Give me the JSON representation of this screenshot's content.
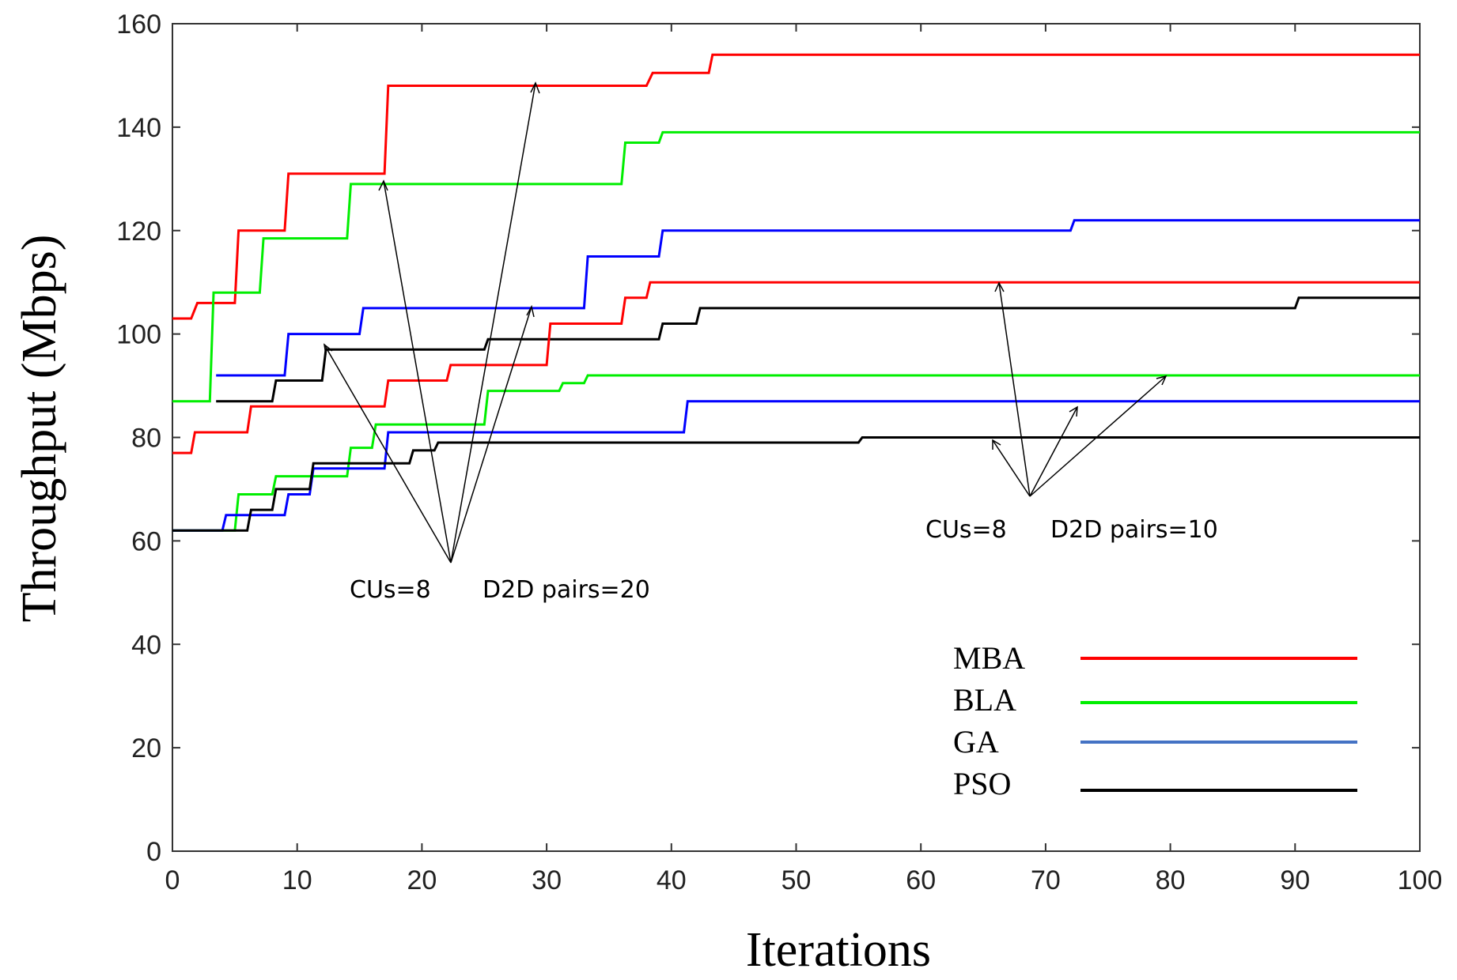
{
  "chart_data": {
    "type": "line",
    "title": "",
    "xlabel": "Iterations",
    "ylabel": "Throughput (Mbps)",
    "xlim": [
      0,
      100
    ],
    "ylim": [
      0,
      160
    ],
    "xticks": [
      "0",
      "10",
      "20",
      "30",
      "40",
      "50",
      "60",
      "70",
      "80",
      "90",
      "100"
    ],
    "yticks": [
      "0",
      "20",
      "40",
      "60",
      "80",
      "100",
      "120",
      "140",
      "160"
    ],
    "grid": false,
    "legend_position": "bottom-right",
    "legend": [
      {
        "name": "MBA",
        "color": "#ff0000"
      },
      {
        "name": "BLA",
        "color": "#00ee00"
      },
      {
        "name": "GA",
        "color": "#4472c4"
      },
      {
        "name": "PSO",
        "color": "#000000"
      }
    ],
    "annotations": [
      {
        "cus": "CUs=8",
        "pairs": "D2D pairs=20"
      },
      {
        "cus": "CUs=8",
        "pairs": "D2D pairs=10"
      }
    ],
    "series": [
      {
        "name": "MBA",
        "scenario": "D2D pairs=20",
        "color": "#ff0000",
        "x": [
          0,
          1.5,
          2,
          5,
          5.3,
          9,
          9.3,
          17,
          17.3,
          38,
          38.5,
          43,
          43.3,
          100
        ],
        "y": [
          103,
          103,
          106,
          106,
          120,
          120,
          131,
          131,
          148,
          148,
          150.5,
          150.5,
          154,
          154
        ]
      },
      {
        "name": "BLA",
        "scenario": "D2D pairs=20",
        "color": "#00ee00",
        "x": [
          0,
          3,
          3.3,
          7,
          7.3,
          14,
          14.3,
          36,
          36.3,
          39,
          39.3,
          100
        ],
        "y": [
          87,
          87,
          108,
          108,
          118.5,
          118.5,
          129,
          129,
          137,
          137,
          139,
          139
        ]
      },
      {
        "name": "GA",
        "scenario": "D2D pairs=20",
        "color": "#0000ff",
        "x": [
          3.5,
          9,
          9.3,
          15,
          15.3,
          33,
          33.3,
          39,
          39.3,
          72,
          72.3,
          100
        ],
        "y": [
          92,
          92,
          100,
          100,
          105,
          105,
          115,
          115,
          120,
          120,
          122,
          122
        ]
      },
      {
        "name": "PSO",
        "scenario": "D2D pairs=20",
        "color": "#000000",
        "x": [
          3.5,
          8,
          8.3,
          12,
          12.3,
          25,
          25.3,
          39,
          39.3,
          42,
          42.3,
          90,
          90.3,
          100
        ],
        "y": [
          87,
          87,
          91,
          91,
          97,
          97,
          99,
          99,
          102,
          102,
          105,
          105,
          107,
          107
        ]
      },
      {
        "name": "MBA",
        "scenario": "D2D pairs=10",
        "color": "#ff0000",
        "x": [
          0,
          1.5,
          1.8,
          6,
          6.3,
          17,
          17.3,
          22,
          22.3,
          30,
          30.3,
          36,
          36.3,
          38,
          38.3,
          100
        ],
        "y": [
          77,
          77,
          81,
          81,
          86,
          86,
          91,
          91,
          94,
          94,
          102,
          102,
          107,
          107,
          110,
          110
        ]
      },
      {
        "name": "BLA",
        "scenario": "D2D pairs=10",
        "color": "#00ee00",
        "x": [
          0,
          5,
          5.3,
          8,
          8.3,
          14,
          14.3,
          16,
          16.3,
          25,
          25.3,
          31,
          31.3,
          33,
          33.3,
          100
        ],
        "y": [
          62,
          62,
          69,
          69,
          72.5,
          72.5,
          78,
          78,
          82.5,
          82.5,
          89,
          89,
          90.5,
          90.5,
          92,
          92
        ]
      },
      {
        "name": "GA",
        "scenario": "D2D pairs=10",
        "color": "#0000ff",
        "x": [
          0,
          4,
          4.3,
          9,
          9.3,
          11,
          11.3,
          17,
          17.3,
          41,
          41.3,
          100
        ],
        "y": [
          62,
          62,
          65,
          65,
          69,
          69,
          74,
          74,
          81,
          81,
          87,
          87
        ]
      },
      {
        "name": "PSO",
        "scenario": "D2D pairs=10",
        "color": "#000000",
        "x": [
          0,
          6,
          6.3,
          8,
          8.3,
          11,
          11.3,
          19,
          19.3,
          21,
          21.3,
          55,
          55.3,
          100
        ],
        "y": [
          62,
          62,
          66,
          66,
          70,
          70,
          75,
          75,
          77.5,
          77.5,
          79,
          79,
          80,
          80
        ]
      }
    ]
  }
}
